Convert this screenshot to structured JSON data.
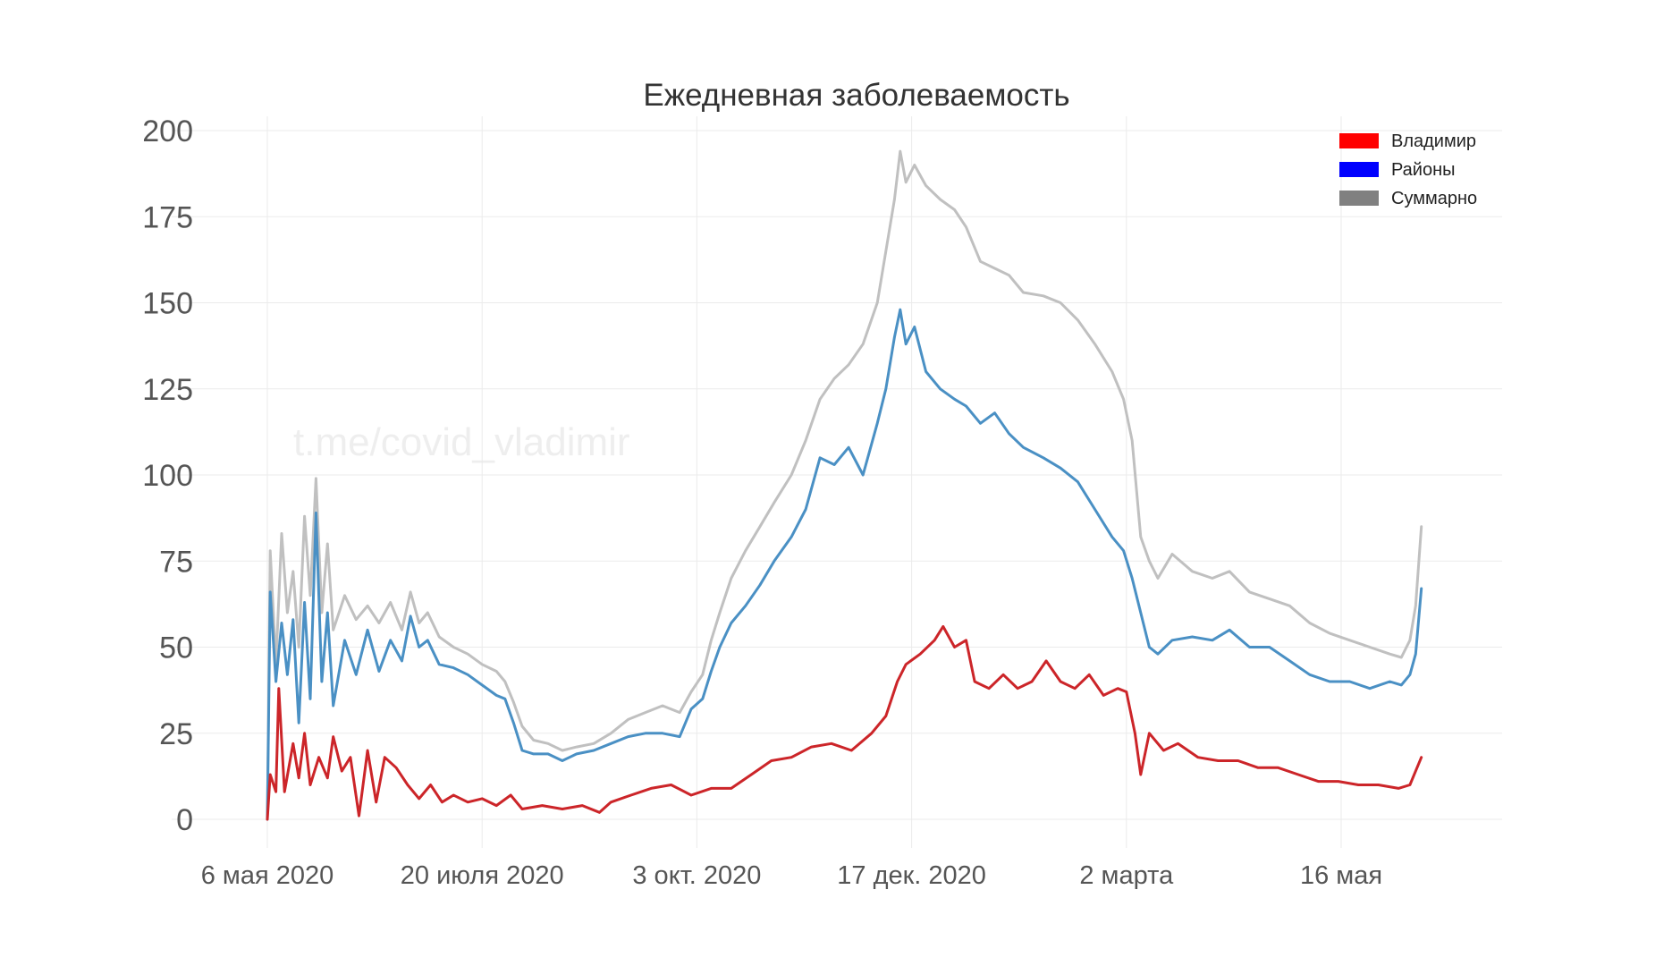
{
  "watermark": "t.me/covid_vladimir",
  "chart_data": {
    "type": "line",
    "title": "Ежедневная заболеваемость",
    "xlabel": "",
    "ylabel": "",
    "ylim": [
      0,
      200
    ],
    "xlim": [
      "2020-05-06",
      "2021-06-13"
    ],
    "grid": true,
    "legend_position": "top-right",
    "y_ticks": [
      0,
      25,
      50,
      75,
      100,
      125,
      150,
      175,
      200
    ],
    "x_ticks": [
      {
        "date": "2020-05-06",
        "label": "6 мая 2020"
      },
      {
        "date": "2020-07-20",
        "label": "20 июля 2020"
      },
      {
        "date": "2020-10-03",
        "label": "3 окт. 2020"
      },
      {
        "date": "2020-12-17",
        "label": "17 дек. 2020"
      },
      {
        "date": "2021-03-02",
        "label": "2 марта"
      },
      {
        "date": "2021-05-16",
        "label": "16 мая"
      }
    ],
    "legend": [
      {
        "name": "Владимир",
        "color": "#ff0000"
      },
      {
        "name": "Районы",
        "color": "#0000ff"
      },
      {
        "name": "Суммарно",
        "color": "#808080"
      }
    ],
    "series": [
      {
        "name": "Суммарно",
        "color": "#c0c0c0",
        "points": [
          [
            "2020-05-06",
            0
          ],
          [
            "2020-05-07",
            78
          ],
          [
            "2020-05-09",
            45
          ],
          [
            "2020-05-11",
            83
          ],
          [
            "2020-05-13",
            60
          ],
          [
            "2020-05-15",
            72
          ],
          [
            "2020-05-17",
            50
          ],
          [
            "2020-05-19",
            88
          ],
          [
            "2020-05-21",
            65
          ],
          [
            "2020-05-23",
            99
          ],
          [
            "2020-05-25",
            60
          ],
          [
            "2020-05-27",
            80
          ],
          [
            "2020-05-29",
            55
          ],
          [
            "2020-06-02",
            65
          ],
          [
            "2020-06-06",
            58
          ],
          [
            "2020-06-10",
            62
          ],
          [
            "2020-06-14",
            57
          ],
          [
            "2020-06-18",
            63
          ],
          [
            "2020-06-22",
            55
          ],
          [
            "2020-06-25",
            66
          ],
          [
            "2020-06-28",
            57
          ],
          [
            "2020-07-01",
            60
          ],
          [
            "2020-07-05",
            53
          ],
          [
            "2020-07-10",
            50
          ],
          [
            "2020-07-15",
            48
          ],
          [
            "2020-07-20",
            45
          ],
          [
            "2020-07-25",
            43
          ],
          [
            "2020-07-28",
            40
          ],
          [
            "2020-07-31",
            34
          ],
          [
            "2020-08-03",
            27
          ],
          [
            "2020-08-07",
            23
          ],
          [
            "2020-08-12",
            22
          ],
          [
            "2020-08-17",
            20
          ],
          [
            "2020-08-22",
            21
          ],
          [
            "2020-08-28",
            22
          ],
          [
            "2020-09-03",
            25
          ],
          [
            "2020-09-09",
            29
          ],
          [
            "2020-09-15",
            31
          ],
          [
            "2020-09-21",
            33
          ],
          [
            "2020-09-27",
            31
          ],
          [
            "2020-10-01",
            37
          ],
          [
            "2020-10-05",
            42
          ],
          [
            "2020-10-08",
            52
          ],
          [
            "2020-10-11",
            60
          ],
          [
            "2020-10-15",
            70
          ],
          [
            "2020-10-20",
            78
          ],
          [
            "2020-10-25",
            85
          ],
          [
            "2020-10-30",
            92
          ],
          [
            "2020-11-05",
            100
          ],
          [
            "2020-11-10",
            110
          ],
          [
            "2020-11-15",
            122
          ],
          [
            "2020-11-20",
            128
          ],
          [
            "2020-11-25",
            132
          ],
          [
            "2020-11-30",
            138
          ],
          [
            "2020-12-05",
            150
          ],
          [
            "2020-12-08",
            165
          ],
          [
            "2020-12-11",
            180
          ],
          [
            "2020-12-13",
            194
          ],
          [
            "2020-12-15",
            185
          ],
          [
            "2020-12-18",
            190
          ],
          [
            "2020-12-22",
            184
          ],
          [
            "2020-12-27",
            180
          ],
          [
            "2021-01-01",
            177
          ],
          [
            "2021-01-05",
            172
          ],
          [
            "2021-01-10",
            162
          ],
          [
            "2021-01-15",
            160
          ],
          [
            "2021-01-20",
            158
          ],
          [
            "2021-01-25",
            153
          ],
          [
            "2021-02-01",
            152
          ],
          [
            "2021-02-07",
            150
          ],
          [
            "2021-02-13",
            145
          ],
          [
            "2021-02-19",
            138
          ],
          [
            "2021-02-25",
            130
          ],
          [
            "2021-03-01",
            122
          ],
          [
            "2021-03-04",
            110
          ],
          [
            "2021-03-07",
            82
          ],
          [
            "2021-03-10",
            75
          ],
          [
            "2021-03-13",
            70
          ],
          [
            "2021-03-18",
            77
          ],
          [
            "2021-03-25",
            72
          ],
          [
            "2021-04-01",
            70
          ],
          [
            "2021-04-07",
            72
          ],
          [
            "2021-04-14",
            66
          ],
          [
            "2021-04-21",
            64
          ],
          [
            "2021-04-28",
            62
          ],
          [
            "2021-05-05",
            57
          ],
          [
            "2021-05-12",
            54
          ],
          [
            "2021-05-19",
            52
          ],
          [
            "2021-05-26",
            50
          ],
          [
            "2021-06-02",
            48
          ],
          [
            "2021-06-06",
            47
          ],
          [
            "2021-06-09",
            52
          ],
          [
            "2021-06-11",
            62
          ],
          [
            "2021-06-13",
            85
          ]
        ]
      },
      {
        "name": "Районы",
        "color": "#4a90c4",
        "points": [
          [
            "2020-05-06",
            0
          ],
          [
            "2020-05-07",
            66
          ],
          [
            "2020-05-09",
            40
          ],
          [
            "2020-05-11",
            57
          ],
          [
            "2020-05-13",
            42
          ],
          [
            "2020-05-15",
            58
          ],
          [
            "2020-05-17",
            28
          ],
          [
            "2020-05-19",
            63
          ],
          [
            "2020-05-21",
            35
          ],
          [
            "2020-05-23",
            89
          ],
          [
            "2020-05-25",
            40
          ],
          [
            "2020-05-27",
            60
          ],
          [
            "2020-05-29",
            33
          ],
          [
            "2020-06-02",
            52
          ],
          [
            "2020-06-06",
            42
          ],
          [
            "2020-06-10",
            55
          ],
          [
            "2020-06-14",
            43
          ],
          [
            "2020-06-18",
            52
          ],
          [
            "2020-06-22",
            46
          ],
          [
            "2020-06-25",
            59
          ],
          [
            "2020-06-28",
            50
          ],
          [
            "2020-07-01",
            52
          ],
          [
            "2020-07-05",
            45
          ],
          [
            "2020-07-10",
            44
          ],
          [
            "2020-07-15",
            42
          ],
          [
            "2020-07-20",
            39
          ],
          [
            "2020-07-25",
            36
          ],
          [
            "2020-07-28",
            35
          ],
          [
            "2020-07-31",
            28
          ],
          [
            "2020-08-03",
            20
          ],
          [
            "2020-08-07",
            19
          ],
          [
            "2020-08-12",
            19
          ],
          [
            "2020-08-17",
            17
          ],
          [
            "2020-08-22",
            19
          ],
          [
            "2020-08-28",
            20
          ],
          [
            "2020-09-03",
            22
          ],
          [
            "2020-09-09",
            24
          ],
          [
            "2020-09-15",
            25
          ],
          [
            "2020-09-21",
            25
          ],
          [
            "2020-09-27",
            24
          ],
          [
            "2020-10-01",
            32
          ],
          [
            "2020-10-05",
            35
          ],
          [
            "2020-10-08",
            43
          ],
          [
            "2020-10-11",
            50
          ],
          [
            "2020-10-15",
            57
          ],
          [
            "2020-10-20",
            62
          ],
          [
            "2020-10-25",
            68
          ],
          [
            "2020-10-30",
            75
          ],
          [
            "2020-11-05",
            82
          ],
          [
            "2020-11-10",
            90
          ],
          [
            "2020-11-15",
            105
          ],
          [
            "2020-11-20",
            103
          ],
          [
            "2020-11-25",
            108
          ],
          [
            "2020-11-30",
            100
          ],
          [
            "2020-12-05",
            115
          ],
          [
            "2020-12-08",
            125
          ],
          [
            "2020-12-11",
            140
          ],
          [
            "2020-12-13",
            148
          ],
          [
            "2020-12-15",
            138
          ],
          [
            "2020-12-18",
            143
          ],
          [
            "2020-12-22",
            130
          ],
          [
            "2020-12-27",
            125
          ],
          [
            "2021-01-01",
            122
          ],
          [
            "2021-01-05",
            120
          ],
          [
            "2021-01-10",
            115
          ],
          [
            "2021-01-15",
            118
          ],
          [
            "2021-01-20",
            112
          ],
          [
            "2021-01-25",
            108
          ],
          [
            "2021-02-01",
            105
          ],
          [
            "2021-02-07",
            102
          ],
          [
            "2021-02-13",
            98
          ],
          [
            "2021-02-19",
            90
          ],
          [
            "2021-02-25",
            82
          ],
          [
            "2021-03-01",
            78
          ],
          [
            "2021-03-04",
            70
          ],
          [
            "2021-03-07",
            60
          ],
          [
            "2021-03-10",
            50
          ],
          [
            "2021-03-13",
            48
          ],
          [
            "2021-03-18",
            52
          ],
          [
            "2021-03-25",
            53
          ],
          [
            "2021-04-01",
            52
          ],
          [
            "2021-04-07",
            55
          ],
          [
            "2021-04-14",
            50
          ],
          [
            "2021-04-21",
            50
          ],
          [
            "2021-04-28",
            46
          ],
          [
            "2021-05-05",
            42
          ],
          [
            "2021-05-12",
            40
          ],
          [
            "2021-05-19",
            40
          ],
          [
            "2021-05-26",
            38
          ],
          [
            "2021-06-02",
            40
          ],
          [
            "2021-06-06",
            39
          ],
          [
            "2021-06-09",
            42
          ],
          [
            "2021-06-11",
            48
          ],
          [
            "2021-06-13",
            67
          ]
        ]
      },
      {
        "name": "Владимир",
        "color": "#cc2529",
        "points": [
          [
            "2020-05-06",
            0
          ],
          [
            "2020-05-07",
            13
          ],
          [
            "2020-05-09",
            8
          ],
          [
            "2020-05-10",
            38
          ],
          [
            "2020-05-12",
            8
          ],
          [
            "2020-05-15",
            22
          ],
          [
            "2020-05-17",
            12
          ],
          [
            "2020-05-19",
            25
          ],
          [
            "2020-05-21",
            10
          ],
          [
            "2020-05-24",
            18
          ],
          [
            "2020-05-27",
            12
          ],
          [
            "2020-05-29",
            24
          ],
          [
            "2020-06-01",
            14
          ],
          [
            "2020-06-04",
            18
          ],
          [
            "2020-06-07",
            1
          ],
          [
            "2020-06-10",
            20
          ],
          [
            "2020-06-13",
            5
          ],
          [
            "2020-06-16",
            18
          ],
          [
            "2020-06-20",
            15
          ],
          [
            "2020-06-24",
            10
          ],
          [
            "2020-06-28",
            6
          ],
          [
            "2020-07-02",
            10
          ],
          [
            "2020-07-06",
            5
          ],
          [
            "2020-07-10",
            7
          ],
          [
            "2020-07-15",
            5
          ],
          [
            "2020-07-20",
            6
          ],
          [
            "2020-07-25",
            4
          ],
          [
            "2020-07-30",
            7
          ],
          [
            "2020-08-03",
            3
          ],
          [
            "2020-08-10",
            4
          ],
          [
            "2020-08-17",
            3
          ],
          [
            "2020-08-24",
            4
          ],
          [
            "2020-08-30",
            2
          ],
          [
            "2020-09-03",
            5
          ],
          [
            "2020-09-10",
            7
          ],
          [
            "2020-09-17",
            9
          ],
          [
            "2020-09-24",
            10
          ],
          [
            "2020-10-01",
            7
          ],
          [
            "2020-10-08",
            9
          ],
          [
            "2020-10-15",
            9
          ],
          [
            "2020-10-22",
            13
          ],
          [
            "2020-10-29",
            17
          ],
          [
            "2020-11-05",
            18
          ],
          [
            "2020-11-12",
            21
          ],
          [
            "2020-11-19",
            22
          ],
          [
            "2020-11-26",
            20
          ],
          [
            "2020-12-03",
            25
          ],
          [
            "2020-12-08",
            30
          ],
          [
            "2020-12-12",
            40
          ],
          [
            "2020-12-15",
            45
          ],
          [
            "2020-12-20",
            48
          ],
          [
            "2020-12-25",
            52
          ],
          [
            "2020-12-28",
            56
          ],
          [
            "2021-01-01",
            50
          ],
          [
            "2021-01-05",
            52
          ],
          [
            "2021-01-08",
            40
          ],
          [
            "2021-01-13",
            38
          ],
          [
            "2021-01-18",
            42
          ],
          [
            "2021-01-23",
            38
          ],
          [
            "2021-01-28",
            40
          ],
          [
            "2021-02-02",
            46
          ],
          [
            "2021-02-07",
            40
          ],
          [
            "2021-02-12",
            38
          ],
          [
            "2021-02-17",
            42
          ],
          [
            "2021-02-22",
            36
          ],
          [
            "2021-02-27",
            38
          ],
          [
            "2021-03-02",
            37
          ],
          [
            "2021-03-05",
            25
          ],
          [
            "2021-03-07",
            13
          ],
          [
            "2021-03-10",
            25
          ],
          [
            "2021-03-15",
            20
          ],
          [
            "2021-03-20",
            22
          ],
          [
            "2021-03-27",
            18
          ],
          [
            "2021-04-03",
            17
          ],
          [
            "2021-04-10",
            17
          ],
          [
            "2021-04-17",
            15
          ],
          [
            "2021-04-24",
            15
          ],
          [
            "2021-05-01",
            13
          ],
          [
            "2021-05-08",
            11
          ],
          [
            "2021-05-15",
            11
          ],
          [
            "2021-05-22",
            10
          ],
          [
            "2021-05-29",
            10
          ],
          [
            "2021-06-05",
            9
          ],
          [
            "2021-06-09",
            10
          ],
          [
            "2021-06-11",
            14
          ],
          [
            "2021-06-13",
            18
          ]
        ]
      }
    ]
  }
}
